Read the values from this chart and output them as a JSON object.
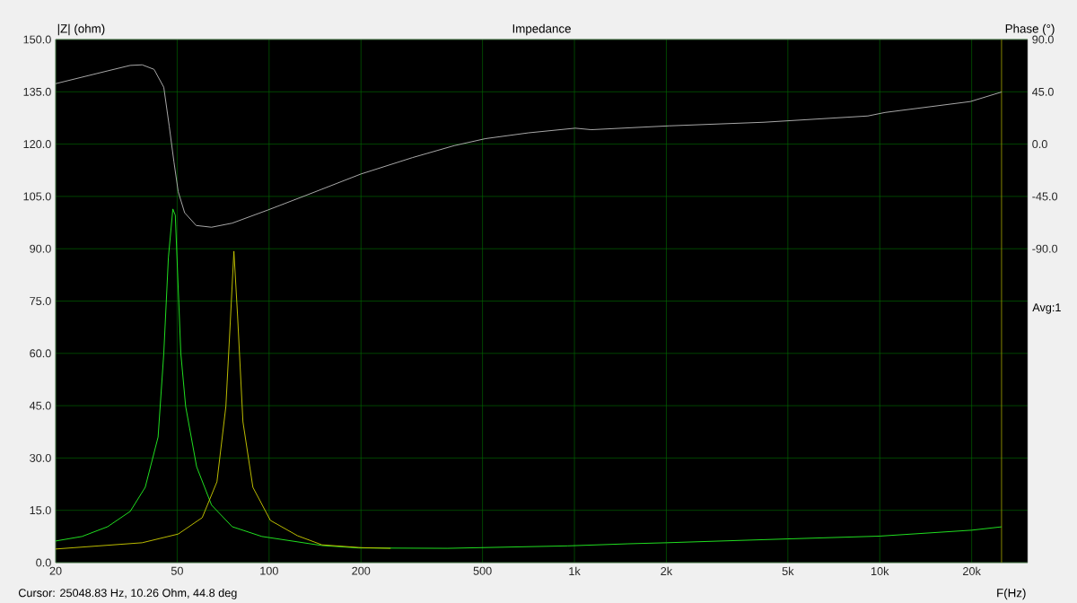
{
  "chart_data": {
    "type": "line",
    "title": "Impedance",
    "xlabel": "F(Hz)",
    "ylabel": "|Z| (ohm)",
    "y2label": "Phase (°)",
    "annotations": [
      "Cursor: 25048.83 Hz, 10.26 Ohm, 44.8 deg",
      "Avg:1"
    ],
    "log": "x",
    "grid": true,
    "xlim": [
      20,
      30500
    ],
    "xticks": [
      20,
      50,
      100,
      200,
      500,
      {
        "value": 1000,
        "label": "1k"
      },
      {
        "value": 2000,
        "label": "2k"
      },
      {
        "value": 5000,
        "label": "5k"
      },
      {
        "value": 10000,
        "label": "10k"
      },
      {
        "value": 20000,
        "label": "20k"
      }
    ],
    "ylim": [
      0,
      150
    ],
    "yticks": [
      {
        "value": 0,
        "label": "0.0"
      },
      {
        "value": 15,
        "label": "15.0"
      },
      {
        "value": 30,
        "label": "30.0"
      },
      {
        "value": 45,
        "label": "45.0"
      },
      {
        "value": 60,
        "label": "60.0"
      },
      {
        "value": 75,
        "label": "75.0"
      },
      {
        "value": 90,
        "label": "90.0"
      },
      {
        "value": 105,
        "label": "105.0"
      },
      {
        "value": 120,
        "label": "120.0"
      },
      {
        "value": 135,
        "label": "135.0"
      },
      {
        "value": 150,
        "label": "150.0"
      }
    ],
    "y2lim": [
      -360,
      90
    ],
    "y2ticks": [
      {
        "value": -90,
        "label": "-90.0"
      },
      {
        "value": -45,
        "label": "-45.0"
      },
      {
        "value": 0,
        "label": "0.0"
      },
      {
        "value": 45,
        "label": "45.0"
      },
      {
        "value": 90,
        "label": "90.0"
      }
    ],
    "ref_lines": [
      {
        "axis": "x",
        "value": 25048.83,
        "color": "#8c8c00"
      }
    ],
    "series": [
      {
        "color": "#22ee22",
        "x": [
          20,
          24.4,
          29.6,
          35.1,
          39.3,
          43.3,
          45.2,
          46.8,
          48.4,
          49.3,
          51.4,
          53.3,
          57.9,
          64.8,
          75.7,
          94.7,
          149,
          196,
          385,
          952,
          1500,
          2000,
          5000,
          10000,
          20000,
          25048.83
        ],
        "values": [
          6.2,
          7.5,
          10.3,
          14.7,
          21.6,
          36,
          60,
          87.5,
          101.4,
          99.6,
          60,
          44.8,
          27.5,
          16.5,
          10.3,
          7.5,
          4.9,
          4.2,
          4.1,
          4.8,
          5.4,
          5.7,
          6.8,
          7.6,
          9.3,
          10.26
        ]
      },
      {
        "color": "#c8c800",
        "x": [
          20,
          38.4,
          50.4,
          60.4,
          67.5,
          72.2,
          74.8,
          76.7,
          78.9,
          82.1,
          88.5,
          101,
          124,
          149,
          200,
          250
        ],
        "values": [
          3.9,
          5.7,
          8.2,
          12.9,
          23.2,
          44.8,
          70.5,
          89.3,
          70.5,
          40.4,
          21.6,
          12.1,
          7.7,
          5.1,
          4.3,
          4.1
        ]
      },
      {
        "color": "#b4b4b4",
        "axis": "y2",
        "x": [
          20,
          29.6,
          35.1,
          38.4,
          42,
          45.2,
          47.1,
          48.8,
          50.4,
          52.9,
          57.7,
          64.8,
          75.7,
          99.3,
          133,
          200,
          295,
          404,
          511,
          707,
          1006,
          1136,
          2040,
          4170,
          9140,
          10400,
          19800,
          25048.83
        ],
        "values": [
          52,
          63,
          67.7,
          68.2,
          64.3,
          48.9,
          15.4,
          -15.4,
          -41,
          -59,
          -70,
          -71.5,
          -68,
          -56.6,
          -43.8,
          -25.7,
          -11.6,
          -1.3,
          4.7,
          9.7,
          13.7,
          12.4,
          15.7,
          18.8,
          24.2,
          27.2,
          36.6,
          44.8
        ]
      }
    ]
  }
}
